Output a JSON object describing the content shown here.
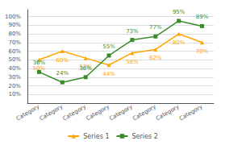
{
  "chart_data": {
    "type": "line",
    "categories": [
      "Category",
      "Category",
      "Category",
      "Category",
      "Category",
      "Category",
      "Category",
      "Category"
    ],
    "series": [
      {
        "name": "Series 1",
        "color": "#FFA500",
        "marker": "triangle",
        "values": [
          0.5,
          0.6,
          0.52,
          0.44,
          0.58,
          0.62,
          0.8,
          0.7
        ],
        "value_labels": [
          "50%",
          "60%",
          "52%",
          "44%",
          "58%",
          "62%",
          "80%",
          "70%"
        ]
      },
      {
        "name": "Series 2",
        "color": "#3A8C2A",
        "marker": "square",
        "values": [
          0.36,
          0.24,
          0.3,
          0.55,
          0.73,
          0.77,
          0.95,
          0.89
        ],
        "value_labels": [
          "36%",
          "24%",
          "30%",
          "55%",
          "73%",
          "77%",
          "95%",
          "89%"
        ]
      }
    ],
    "ylim": [
      0.0,
      1.08
    ],
    "yticks": [
      {
        "value": 0.1,
        "label": "10%"
      },
      {
        "value": 0.2,
        "label": "20%"
      },
      {
        "value": 0.3,
        "label": "30%"
      },
      {
        "value": 0.4,
        "label": "40%"
      },
      {
        "value": 0.5,
        "label": "50%"
      },
      {
        "value": 0.6,
        "label": "60%"
      },
      {
        "value": 0.7,
        "label": "70%"
      },
      {
        "value": 0.8,
        "label": "80%"
      },
      {
        "value": 0.9,
        "label": "90%"
      },
      {
        "value": 1.0,
        "label": "100%"
      }
    ],
    "grid": true,
    "legend": "bottom",
    "data_labels": true
  }
}
